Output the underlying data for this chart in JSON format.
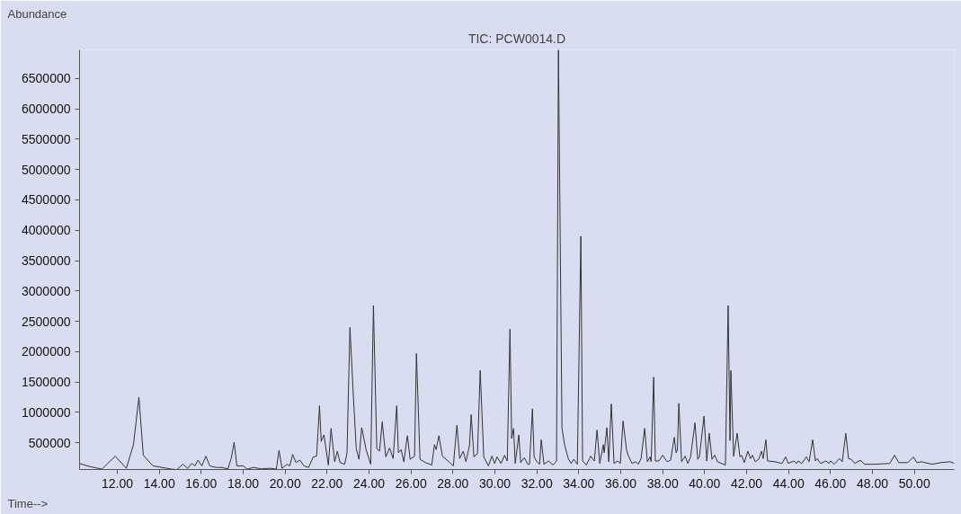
{
  "chart_data": {
    "type": "line",
    "title": "TIC: PCW0014.D",
    "xlabel": "Time-->",
    "ylabel": "Abundance",
    "xlim": [
      10.2,
      51.9
    ],
    "ylim": [
      60000,
      6970000
    ],
    "xticks": [
      {
        "value": 12,
        "label": "12.00"
      },
      {
        "value": 14,
        "label": "14.00"
      },
      {
        "value": 16,
        "label": "16.00"
      },
      {
        "value": 18,
        "label": "18.00"
      },
      {
        "value": 20,
        "label": "20.00"
      },
      {
        "value": 22,
        "label": "22.00"
      },
      {
        "value": 24,
        "label": "24.00"
      },
      {
        "value": 26,
        "label": "26.00"
      },
      {
        "value": 28,
        "label": "28.00"
      },
      {
        "value": 30,
        "label": "30.00"
      },
      {
        "value": 32,
        "label": "32.00"
      },
      {
        "value": 34,
        "label": "34.00"
      },
      {
        "value": 36,
        "label": "36.00"
      },
      {
        "value": 38,
        "label": "38.00"
      },
      {
        "value": 40,
        "label": "40.00"
      },
      {
        "value": 42,
        "label": "42.00"
      },
      {
        "value": 44,
        "label": "44.00"
      },
      {
        "value": 46,
        "label": "46.00"
      },
      {
        "value": 48,
        "label": "48.00"
      },
      {
        "value": 50,
        "label": "50.00"
      }
    ],
    "yticks": [
      500000,
      1000000,
      1500000,
      2000000,
      2500000,
      3000000,
      3500000,
      4000000,
      4500000,
      5000000,
      5500000,
      6000000,
      6500000
    ],
    "series": [
      {
        "color": "#333333",
        "x": [
          10.2,
          10.7,
          11.27,
          11.9,
          12.43,
          12.77,
          13.03,
          13.24,
          13.7,
          14.57,
          14.85,
          15.13,
          15.35,
          15.55,
          15.7,
          15.85,
          16.03,
          16.22,
          16.41,
          16.71,
          16.99,
          17.27,
          17.44,
          17.57,
          17.7,
          18.0,
          18.2,
          18.5,
          18.85,
          19.28,
          19.58,
          19.71,
          19.85,
          20.1,
          20.22,
          20.36,
          20.52,
          20.7,
          20.9,
          21.12,
          21.34,
          21.5,
          21.64,
          21.72,
          21.85,
          22.06,
          22.19,
          22.36,
          22.49,
          22.62,
          22.84,
          22.95,
          23.09,
          23.26,
          23.39,
          23.52,
          23.65,
          23.86,
          24.08,
          24.21,
          24.37,
          24.5,
          24.63,
          24.8,
          24.98,
          25.15,
          25.32,
          25.4,
          25.53,
          25.66,
          25.83,
          25.96,
          26.17,
          26.26,
          26.43,
          26.69,
          26.99,
          27.12,
          27.2,
          27.33,
          27.5,
          27.85,
          28.02,
          28.19,
          28.32,
          28.49,
          28.62,
          28.79,
          28.87,
          29.0,
          29.17,
          29.3,
          29.47,
          29.69,
          29.86,
          29.99,
          30.1,
          30.29,
          30.46,
          30.59,
          30.72,
          30.8,
          30.89,
          30.97,
          31.14,
          31.23,
          31.4,
          31.57,
          31.65,
          31.79,
          31.87,
          32.0,
          32.13,
          32.21,
          32.34,
          32.56,
          32.77,
          32.94,
          33.03,
          33.2,
          33.33,
          33.5,
          33.63,
          33.76,
          33.93,
          34.1,
          34.18,
          34.36,
          34.57,
          34.74,
          34.87,
          35.0,
          35.17,
          35.21,
          35.34,
          35.43,
          35.55,
          35.68,
          35.85,
          35.98,
          36.11,
          36.28,
          36.37,
          36.54,
          36.71,
          36.84,
          36.97,
          37.14,
          37.27,
          37.4,
          37.45,
          37.57,
          37.65,
          37.82,
          38.0,
          38.21,
          38.38,
          38.55,
          38.64,
          38.7,
          38.77,
          38.9,
          39.07,
          39.2,
          39.33,
          39.54,
          39.67,
          39.75,
          39.97,
          40.1,
          40.22,
          40.35,
          40.48,
          40.61,
          40.99,
          41.12,
          41.21,
          41.25,
          41.38,
          41.55,
          41.68,
          41.76,
          41.89,
          42.06,
          42.19,
          42.28,
          42.41,
          42.58,
          42.71,
          42.79,
          42.92,
          43.0,
          43.35,
          43.69,
          43.86,
          43.99,
          44.25,
          44.38,
          44.46,
          44.63,
          44.85,
          44.98,
          45.15,
          45.28,
          45.36,
          45.53,
          45.79,
          45.92,
          46.0,
          46.18,
          46.43,
          46.56,
          46.73,
          46.86,
          46.99,
          47.16,
          47.42,
          47.63,
          48.1,
          48.83,
          49.05,
          49.26,
          49.69,
          49.95,
          50.12,
          50.33,
          50.84,
          51.27,
          51.7,
          51.9
        ],
        "values": [
          160000,
          107000,
          67000,
          280000,
          80000,
          470000,
          1250000,
          295000,
          120000,
          67000,
          60000,
          147000,
          80000,
          160000,
          120000,
          214000,
          120000,
          280000,
          120000,
          94000,
          94000,
          70000,
          255000,
          510000,
          120000,
          120000,
          67000,
          94000,
          70000,
          80000,
          67000,
          375000,
          80000,
          147000,
          120000,
          308000,
          174000,
          214000,
          120000,
          94000,
          268000,
          280000,
          1110000,
          523000,
          630000,
          134000,
          737000,
          188000,
          362000,
          174000,
          147000,
          335000,
          2400000,
          1230000,
          402000,
          228000,
          750000,
          389000,
          147000,
          2760000,
          402000,
          362000,
          845000,
          268000,
          415000,
          241000,
          1110000,
          335000,
          389000,
          188000,
          617000,
          228000,
          280000,
          1970000,
          228000,
          174000,
          134000,
          470000,
          389000,
          617000,
          280000,
          174000,
          120000,
          790000,
          241000,
          362000,
          188000,
          456000,
          965000,
          268000,
          322000,
          1690000,
          268000,
          120000,
          280000,
          160000,
          268000,
          160000,
          295000,
          201000,
          2370000,
          570000,
          737000,
          160000,
          630000,
          174000,
          255000,
          147000,
          147000,
          1060000,
          268000,
          188000,
          147000,
          550000,
          147000,
          201000,
          134000,
          201000,
          6970000,
          737000,
          456000,
          241000,
          160000,
          228000,
          147000,
          3900000,
          201000,
          134000,
          280000,
          201000,
          710000,
          160000,
          470000,
          335000,
          750000,
          188000,
          1140000,
          160000,
          201000,
          160000,
          858000,
          375000,
          280000,
          160000,
          188000,
          147000,
          241000,
          737000,
          188000,
          268000,
          188000,
          1580000,
          201000,
          201000,
          295000,
          188000,
          214000,
          590000,
          335000,
          375000,
          1150000,
          188000,
          280000,
          160000,
          268000,
          830000,
          228000,
          268000,
          940000,
          201000,
          657000,
          228000,
          295000,
          188000,
          134000,
          2760000,
          536000,
          1690000,
          280000,
          657000,
          268000,
          295000,
          174000,
          362000,
          241000,
          295000,
          188000,
          228000,
          362000,
          241000,
          550000,
          201000,
          188000,
          160000,
          268000,
          160000,
          201000,
          160000,
          201000,
          160000,
          268000,
          188000,
          550000,
          201000,
          241000,
          160000,
          201000,
          160000,
          201000,
          147000,
          241000,
          188000,
          657000,
          241000,
          228000,
          160000,
          214000,
          147000,
          147000,
          160000,
          295000,
          174000,
          174000,
          268000,
          174000,
          188000,
          147000,
          174000,
          188000,
          160000
        ]
      }
    ]
  }
}
